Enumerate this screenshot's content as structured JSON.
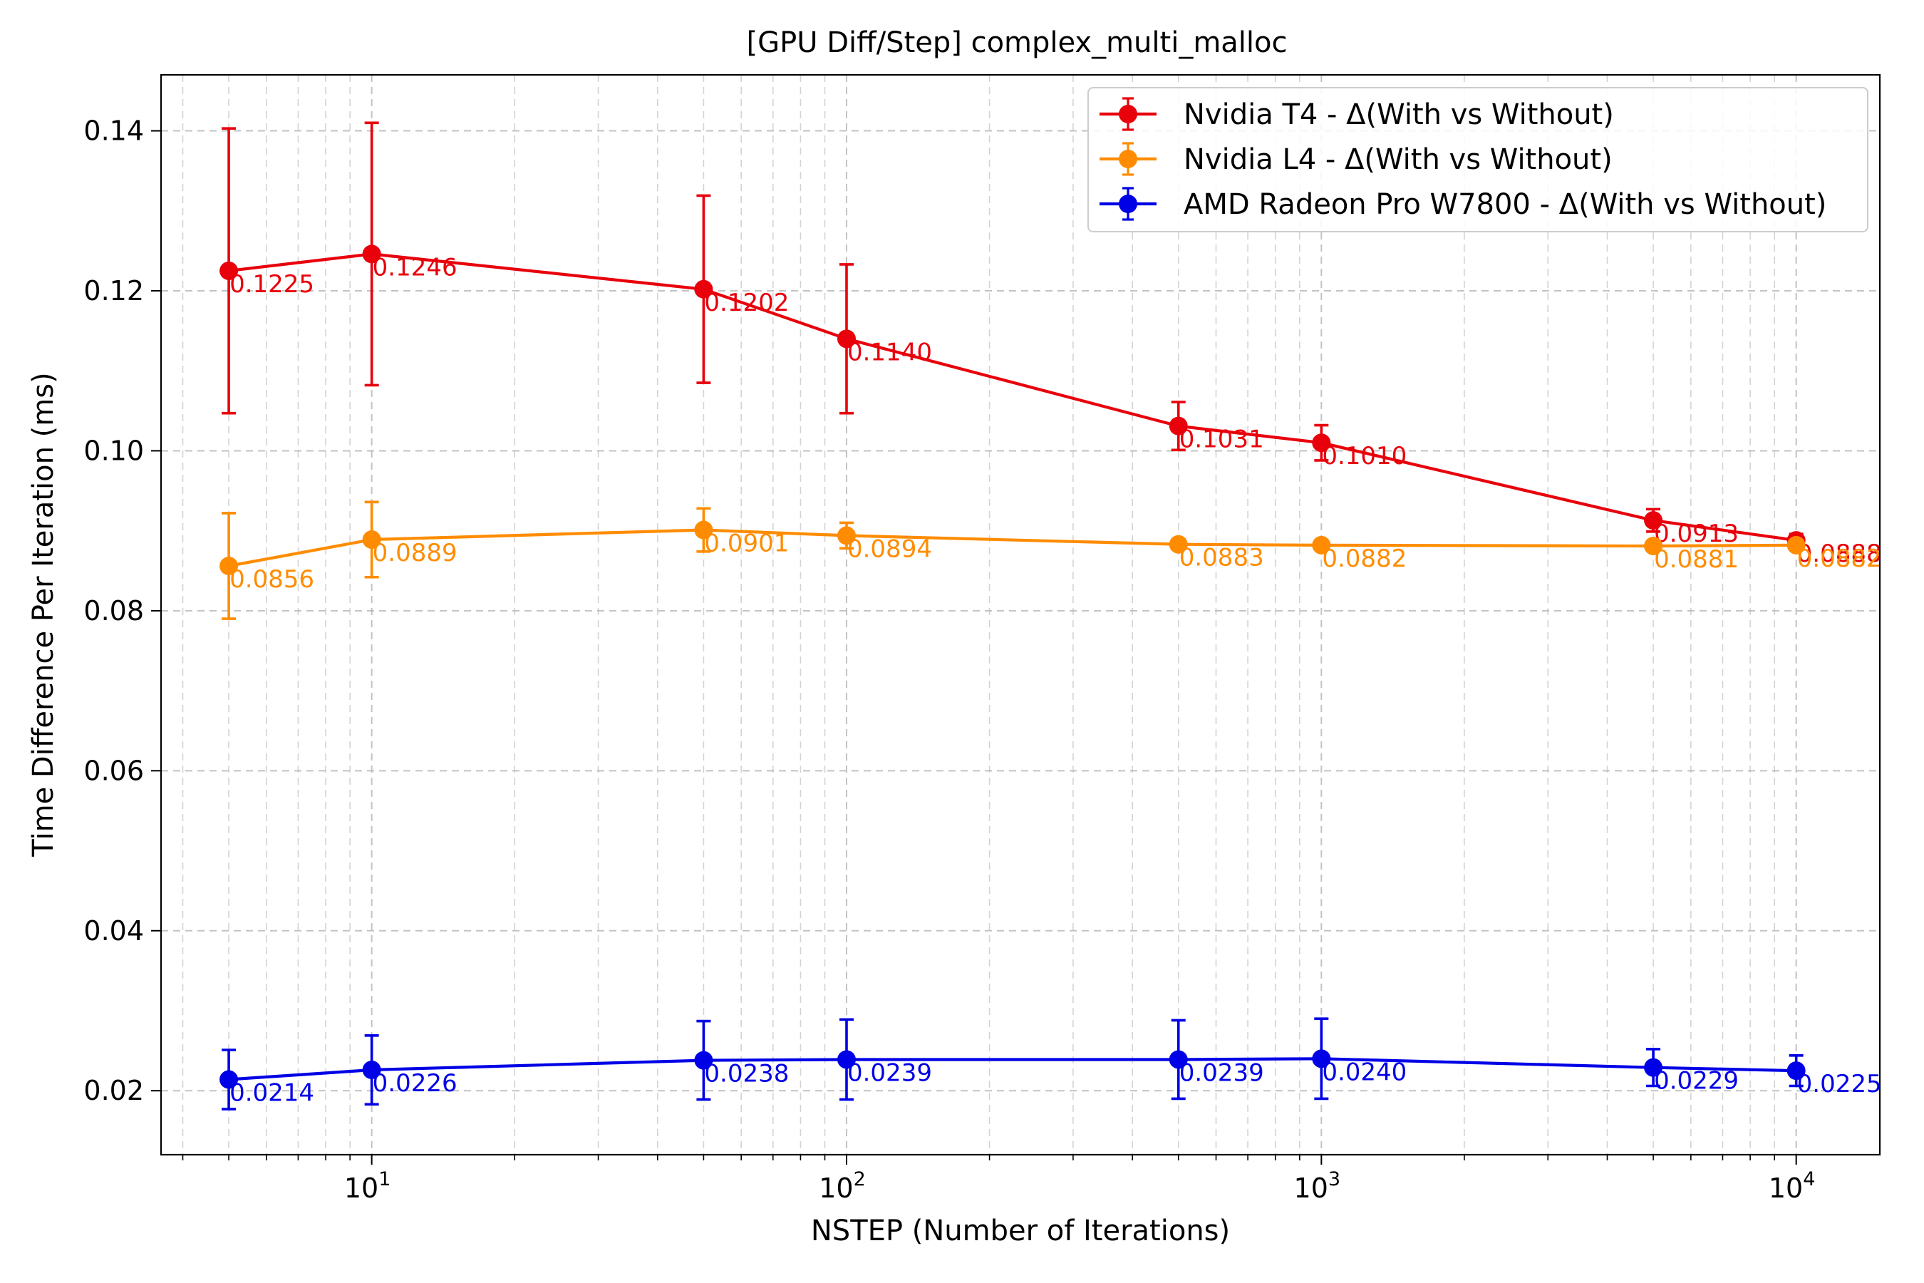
{
  "chart_data": {
    "type": "line",
    "title": "[GPU Diff/Step] complex_multi_malloc",
    "xlabel": "NSTEP (Number of Iterations)",
    "ylabel": "Time Difference Per Iteration (ms)",
    "xscale": "log",
    "xlim": [
      3.6,
      15000
    ],
    "ylim": [
      0.012,
      0.147
    ],
    "x_ticks": [
      10,
      100,
      1000,
      10000
    ],
    "x_tick_labels": [
      [
        "10",
        "1"
      ],
      [
        "10",
        "2"
      ],
      [
        "10",
        "3"
      ],
      [
        "10",
        "4"
      ]
    ],
    "y_ticks": [
      0.02,
      0.04,
      0.06,
      0.08,
      0.1,
      0.12,
      0.14
    ],
    "y_tick_labels": [
      "0.02",
      "0.04",
      "0.06",
      "0.08",
      "0.10",
      "0.12",
      "0.14"
    ],
    "grid": "both (major and minor, dashed)",
    "legend_position": "top-right",
    "x": [
      5,
      10,
      50,
      100,
      500,
      1000,
      5000,
      10000
    ],
    "series": [
      {
        "name": "Nvidia T4 - Δ(With vs Without)",
        "color": "#e8000b",
        "values": [
          0.1225,
          0.1246,
          0.1202,
          0.114,
          0.1031,
          0.101,
          0.0913,
          0.0888
        ],
        "error": [
          0.0178,
          0.0164,
          0.0117,
          0.0093,
          0.003,
          0.0022,
          0.0014,
          0.0008
        ],
        "labels": [
          "0.1225",
          "0.1246",
          "0.1202",
          "0.1140",
          "0.1031",
          "0.1010",
          "0.0913",
          "0.0888"
        ]
      },
      {
        "name": "Nvidia L4 - Δ(With vs Without)",
        "color": "#ff8c00",
        "values": [
          0.0856,
          0.0889,
          0.0901,
          0.0894,
          0.0883,
          0.0882,
          0.0881,
          0.0882
        ],
        "error": [
          0.0066,
          0.0047,
          0.0027,
          0.0016,
          0.0006,
          0.0005,
          0.0004,
          0.0003
        ],
        "labels": [
          "0.0856",
          "0.0889",
          "0.0901",
          "0.0894",
          "0.0883",
          "0.0882",
          "0.0881",
          "0.0882"
        ]
      },
      {
        "name": "AMD Radeon Pro W7800 - Δ(With vs Without)",
        "color": "#0000e6",
        "values": [
          0.0214,
          0.0226,
          0.0238,
          0.0239,
          0.0239,
          0.024,
          0.0229,
          0.0225
        ],
        "error": [
          0.0037,
          0.0043,
          0.0049,
          0.005,
          0.0049,
          0.005,
          0.0023,
          0.0019
        ],
        "labels": [
          "0.0214",
          "0.0226",
          "0.0238",
          "0.0239",
          "0.0239",
          "0.0240",
          "0.0229",
          "0.0225"
        ]
      }
    ]
  }
}
